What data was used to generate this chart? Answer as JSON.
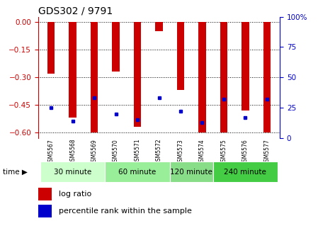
{
  "title": "GDS302 / 9791",
  "samples": [
    "GSM5567",
    "GSM5568",
    "GSM5569",
    "GSM5570",
    "GSM5571",
    "GSM5572",
    "GSM5573",
    "GSM5574",
    "GSM5575",
    "GSM5576",
    "GSM5577"
  ],
  "log_ratio": [
    -0.28,
    -0.52,
    -0.6,
    -0.27,
    -0.57,
    -0.05,
    -0.37,
    -0.6,
    -0.6,
    -0.48,
    -0.6
  ],
  "percentile_rank": [
    25,
    14,
    33,
    20,
    15,
    33,
    22,
    13,
    32,
    17,
    32
  ],
  "groups": [
    {
      "label": "30 minute",
      "samples": [
        0,
        1,
        2
      ],
      "color": "#ccffcc"
    },
    {
      "label": "60 minute",
      "samples": [
        3,
        4,
        5
      ],
      "color": "#99ee99"
    },
    {
      "label": "120 minute",
      "samples": [
        6,
        7
      ],
      "color": "#88dd88"
    },
    {
      "label": "240 minute",
      "samples": [
        8,
        9,
        10
      ],
      "color": "#44cc44"
    }
  ],
  "ylim_left": [
    -0.63,
    0.03
  ],
  "ylim_right": [
    0,
    100
  ],
  "yticks_left": [
    0,
    -0.15,
    -0.3,
    -0.45,
    -0.6
  ],
  "yticks_right": [
    0,
    25,
    50,
    75,
    100
  ],
  "bar_color": "#cc0000",
  "dot_color": "#0000cc",
  "bar_width": 0.35,
  "bg_color": "#ffffff",
  "grid_color": "#000000",
  "ylabel_left_color": "#cc0000",
  "ylabel_right_color": "#0000cc",
  "time_label": "time",
  "legend_log_ratio": "log ratio",
  "legend_percentile": "percentile rank within the sample",
  "sample_bg": "#cccccc"
}
